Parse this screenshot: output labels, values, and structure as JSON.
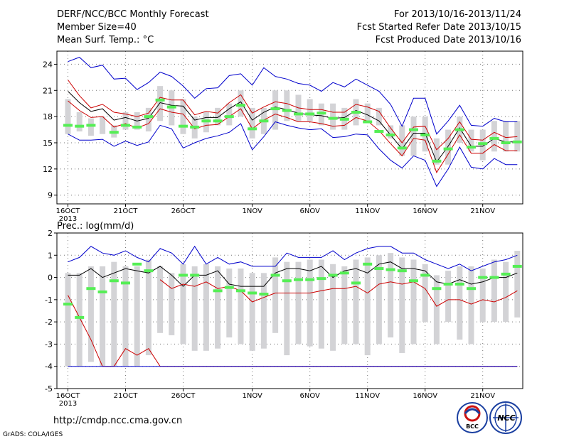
{
  "header": {
    "title": "DERF/NCC/BCC Monthly Forecast",
    "member_size": "Member Size=40",
    "variable": "Mean Surf. Temp.: °C",
    "period": "For 2013/10/16-2013/11/24",
    "fcst_started": "Fcst Started Refer Date 2013/10/15",
    "fcst_produced": "Fcst Produced Date 2013/10/16"
  },
  "footer": {
    "url": "http://cmdp.ncc.cma.gov.cn",
    "credit": "GrADS: COLA/IGES",
    "logo_bcc": "BCC",
    "logo_ncc": "NCC"
  },
  "colors": {
    "box": "#d3d3d6",
    "mean": "#000000",
    "spread": "#cc0000",
    "extreme": "#0000cc",
    "median": "#55ee55"
  },
  "chart_data": [
    {
      "type": "line",
      "title": "Mean Surf. Temp.: °C",
      "x_start_day": 16,
      "xtick_days": [
        16,
        21,
        26,
        32,
        37,
        42,
        47,
        52
      ],
      "xtick_labels": [
        "16OCT",
        "21OCT",
        "26OCT",
        "1NOV",
        "6NOV",
        "11NOV",
        "16NOV",
        "21NOV"
      ],
      "xtick_sublabel": "2013",
      "ylim": [
        8,
        25.5
      ],
      "yticks": [
        9,
        12,
        15,
        18,
        21,
        24
      ],
      "grid": true,
      "days": [
        16,
        17,
        18,
        19,
        20,
        21,
        22,
        23,
        24,
        25,
        26,
        27,
        28,
        29,
        30,
        31,
        32,
        33,
        34,
        35,
        36,
        37,
        38,
        39,
        40,
        41,
        42,
        43,
        44,
        45,
        46,
        47,
        48,
        49,
        50,
        51,
        52,
        53,
        54,
        55
      ],
      "box_low": [
        16.0,
        16.3,
        15.8,
        16.0,
        15.6,
        16.5,
        16.5,
        16.3,
        17.5,
        17.0,
        16.0,
        15.5,
        16.2,
        17.0,
        17.0,
        18.0,
        15.5,
        16.0,
        16.5,
        17.5,
        17.5,
        17.5,
        17.0,
        16.5,
        16.5,
        17.0,
        17.5,
        17.0,
        15.5,
        13.5,
        13.5,
        14.0,
        12.5,
        12.5,
        15.0,
        14.0,
        13.0,
        14.0,
        14.0,
        14.0
      ],
      "box_high": [
        20.0,
        18.5,
        17.8,
        18.0,
        17.0,
        18.5,
        18.5,
        19.0,
        21.5,
        21.0,
        20.0,
        18.0,
        18.5,
        19.0,
        19.5,
        21.0,
        19.0,
        19.0,
        21.0,
        21.0,
        20.5,
        20.0,
        19.5,
        19.5,
        19.0,
        20.0,
        19.5,
        19.0,
        17.0,
        17.0,
        18.0,
        18.0,
        15.5,
        16.5,
        18.0,
        16.5,
        16.5,
        17.5,
        17.5,
        17.5
      ],
      "series": [
        {
          "role": "max",
          "values": [
            24.3,
            24.8,
            23.6,
            23.9,
            22.3,
            22.4,
            21.1,
            21.9,
            23.1,
            22.6,
            21.5,
            20.1,
            21.2,
            21.3,
            22.7,
            22.9,
            21.6,
            23.6,
            22.6,
            22.3,
            21.8,
            21.6,
            20.9,
            21.9,
            21.4,
            22.3,
            21.6,
            20.9,
            19.4,
            16.9,
            20.1,
            20.1,
            16.0,
            17.5,
            19.3,
            17.0,
            16.9,
            17.8,
            17.4,
            17.4
          ]
        },
        {
          "role": "p84",
          "values": [
            22.2,
            20.4,
            19.0,
            19.4,
            18.5,
            18.3,
            18.0,
            18.4,
            20.2,
            19.9,
            19.9,
            18.2,
            18.6,
            18.4,
            19.6,
            20.5,
            18.4,
            19.1,
            19.7,
            19.5,
            19.0,
            18.8,
            18.8,
            18.5,
            18.5,
            19.4,
            19.1,
            18.6,
            16.7,
            15.0,
            16.8,
            16.9,
            14.2,
            15.5,
            17.4,
            15.4,
            15.3,
            16.2,
            15.6,
            15.7
          ]
        },
        {
          "role": "mean",
          "values": [
            20.9,
            19.6,
            18.6,
            18.9,
            17.6,
            17.9,
            17.5,
            17.8,
            19.6,
            19.3,
            19.2,
            17.6,
            17.9,
            17.9,
            18.9,
            19.7,
            17.6,
            18.5,
            19.1,
            18.8,
            18.4,
            18.2,
            18.1,
            17.8,
            17.9,
            18.7,
            18.2,
            17.5,
            15.9,
            14.3,
            16.1,
            16.1,
            12.8,
            14.6,
            16.7,
            14.6,
            14.6,
            15.5,
            15.1,
            15.1
          ]
        },
        {
          "role": "p16",
          "values": [
            19.8,
            18.7,
            17.9,
            18.0,
            16.8,
            17.2,
            16.7,
            17.2,
            18.9,
            18.5,
            18.3,
            16.6,
            17.0,
            17.1,
            18.0,
            18.9,
            16.6,
            17.6,
            18.3,
            17.9,
            17.4,
            17.4,
            17.2,
            16.9,
            17.0,
            17.9,
            17.5,
            16.4,
            14.9,
            13.5,
            15.5,
            15.3,
            11.6,
            13.7,
            15.9,
            13.8,
            13.8,
            14.8,
            14.1,
            14.1
          ]
        },
        {
          "role": "min",
          "values": [
            16.0,
            15.3,
            15.3,
            15.4,
            14.6,
            15.2,
            14.7,
            15.1,
            17.0,
            16.6,
            14.4,
            15.0,
            15.5,
            15.8,
            16.2,
            17.2,
            14.2,
            15.7,
            17.4,
            17.0,
            16.7,
            16.5,
            16.6,
            15.6,
            15.7,
            16.0,
            15.9,
            14.3,
            13.0,
            12.1,
            13.5,
            13.0,
            10.0,
            12.0,
            14.5,
            12.2,
            12.0,
            13.2,
            12.5,
            12.5
          ]
        },
        {
          "role": "median",
          "values": [
            17.0,
            16.9,
            17.0,
            null,
            16.2,
            17.0,
            16.8,
            18.0,
            19.9,
            19.1,
            16.9,
            16.8,
            17.5,
            17.5,
            18.0,
            19.3,
            16.6,
            17.5,
            18.9,
            18.7,
            18.3,
            18.3,
            18.4,
            17.8,
            17.7,
            18.5,
            17.4,
            16.3,
            15.9,
            14.4,
            16.5,
            15.9,
            12.9,
            14.3,
            16.5,
            14.5,
            14.9,
            15.5,
            15.0,
            15.1
          ]
        }
      ]
    },
    {
      "type": "line",
      "title": "Prec.: log(mm/d)",
      "x_start_day": 16,
      "xtick_days": [
        16,
        21,
        26,
        32,
        37,
        42,
        47,
        52
      ],
      "xtick_labels": [
        "16OCT",
        "21OCT",
        "26OCT",
        "1NOV",
        "6NOV",
        "11NOV",
        "16NOV",
        "21NOV"
      ],
      "xtick_sublabel": "2013",
      "ylim": [
        -5,
        2
      ],
      "yticks": [
        -5,
        -4,
        -3,
        -2,
        -1,
        0,
        1,
        2
      ],
      "grid": true,
      "days": [
        16,
        17,
        18,
        19,
        20,
        21,
        22,
        23,
        24,
        25,
        26,
        27,
        28,
        29,
        30,
        31,
        32,
        33,
        34,
        35,
        36,
        37,
        38,
        39,
        40,
        41,
        42,
        43,
        44,
        45,
        46,
        47,
        48,
        49,
        50,
        51,
        52,
        53,
        54,
        55
      ],
      "box_low": [
        -4.0,
        -4.0,
        -3.8,
        -4.0,
        -4.0,
        -4.0,
        -4.0,
        -3.5,
        -2.5,
        -2.6,
        -3.0,
        -3.3,
        -3.3,
        -3.2,
        -2.7,
        -3.0,
        -3.3,
        -3.2,
        -2.5,
        -3.5,
        -3.0,
        -3.1,
        -3.2,
        -3.3,
        -3.0,
        -3.0,
        -3.5,
        -3.0,
        -2.7,
        -3.4,
        -3.0,
        -2.0,
        -3.0,
        -2.0,
        -2.8,
        -3.0,
        -2.0,
        -2.0,
        -2.0,
        -1.8
      ],
      "box_high": [
        0.2,
        0.2,
        0.5,
        0.5,
        0.7,
        0.5,
        0.5,
        0.8,
        0.5,
        0.2,
        0.6,
        0.5,
        0.6,
        0.5,
        0.4,
        0.4,
        0.2,
        0.2,
        0.9,
        0.7,
        0.7,
        0.8,
        0.8,
        0.6,
        0.5,
        0.8,
        0.9,
        1.0,
        1.1,
        0.9,
        0.8,
        0.6,
        0.1,
        0.3,
        0.5,
        0.5,
        0.4,
        0.8,
        0.7,
        1.2
      ],
      "series": [
        {
          "role": "max",
          "values": [
            0.7,
            0.9,
            1.4,
            1.1,
            1.0,
            1.2,
            0.9,
            0.7,
            1.3,
            1.1,
            0.6,
            1.4,
            0.6,
            0.9,
            0.6,
            0.7,
            0.5,
            0.5,
            0.5,
            1.1,
            0.9,
            0.9,
            0.9,
            1.2,
            0.8,
            1.1,
            1.3,
            1.4,
            1.4,
            1.1,
            1.1,
            0.8,
            0.6,
            0.4,
            0.6,
            0.3,
            0.5,
            0.7,
            0.8,
            1.0
          ]
        },
        {
          "role": "mean",
          "values": [
            0.1,
            0.1,
            0.4,
            0.0,
            0.2,
            0.4,
            0.3,
            0.2,
            0.5,
            0.1,
            -0.4,
            0.1,
            0.1,
            0.3,
            -0.3,
            -0.4,
            -0.4,
            -0.4,
            0.2,
            0.4,
            0.4,
            0.3,
            0.5,
            0.0,
            0.3,
            0.4,
            0.2,
            0.6,
            0.7,
            0.4,
            0.4,
            0.3,
            -0.2,
            -0.3,
            -0.1,
            -0.3,
            -0.2,
            0.0,
            0.0,
            0.2
          ]
        },
        {
          "role": "min_red",
          "values": [
            -0.8,
            -1.8,
            -2.8,
            -4.0,
            -4.0,
            -3.2,
            -3.5,
            -3.2,
            -4.0,
            -4.0,
            -4.0,
            -4.0,
            -4.0,
            -4.0,
            -4.0,
            -4.0,
            -4.0,
            -4.0,
            -4.0,
            -4.0,
            -4.0,
            -4.0,
            -4.0,
            -4.0,
            -4.0,
            -4.0,
            -4.0,
            -4.0,
            -4.0,
            -4.0,
            -4.0,
            -4.0,
            -4.0,
            -4.0,
            -4.0,
            -4.0,
            -4.0,
            -4.0,
            -4.0,
            -4.0
          ]
        },
        {
          "role": "p16",
          "values": [
            null,
            null,
            null,
            null,
            null,
            null,
            null,
            null,
            -0.1,
            -0.5,
            -0.3,
            -0.4,
            -0.2,
            -0.5,
            -0.4,
            -0.6,
            -1.1,
            -0.9,
            -0.7,
            -0.7,
            -0.7,
            -0.7,
            -0.6,
            -0.5,
            -0.5,
            -0.4,
            -0.7,
            -0.3,
            -0.2,
            -0.3,
            -0.2,
            -0.5,
            -1.3,
            -1.0,
            -1.0,
            -1.2,
            -1.0,
            -1.1,
            -0.9,
            -0.6
          ]
        },
        {
          "role": "floor",
          "values": [
            -4.0,
            -4.0,
            -4.0,
            -4.0,
            -4.0,
            -4.0,
            -4.0,
            -4.0,
            -4.0,
            -4.0,
            -4.0,
            -4.0,
            -4.0,
            -4.0,
            -4.0,
            -4.0,
            -4.0,
            -4.0,
            -4.0,
            -4.0,
            -4.0,
            -4.0,
            -4.0,
            -4.0,
            -4.0,
            -4.0,
            -4.0,
            -4.0,
            -4.0,
            -4.0,
            -4.0,
            -4.0,
            -4.0,
            -4.0,
            -4.0,
            -4.0,
            -4.0,
            -4.0,
            -4.0,
            -4.0
          ]
        },
        {
          "role": "median",
          "values": [
            -1.2,
            -1.8,
            -0.5,
            -0.65,
            -0.15,
            -0.25,
            0.6,
            0.3,
            null,
            null,
            0.1,
            0.1,
            null,
            -0.6,
            -0.45,
            -0.6,
            -0.7,
            -0.75,
            0.1,
            -0.15,
            -0.1,
            -0.1,
            -0.05,
            0.1,
            0.2,
            -0.25,
            0.6,
            0.4,
            0.35,
            0.3,
            -0.15,
            0.1,
            -0.5,
            -0.3,
            -0.3,
            -0.5,
            0.0,
            0.0,
            0.15,
            0.5
          ]
        }
      ]
    }
  ]
}
